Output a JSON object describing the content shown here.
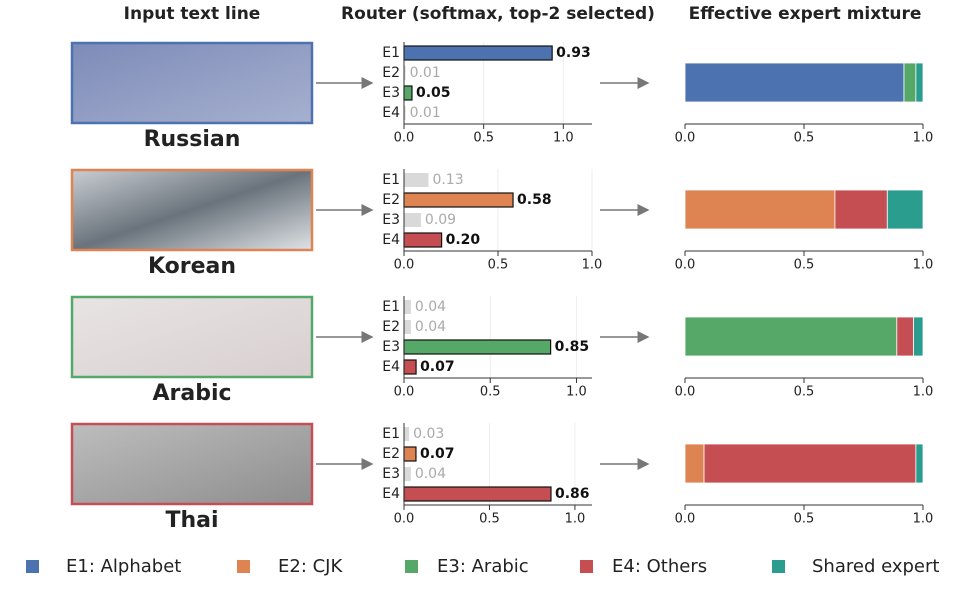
{
  "headers": [
    "Input text line",
    "Router  (softmax, top-2 selected)",
    "Effective expert mixture"
  ],
  "inputs": [
    {
      "label": "Russian",
      "color": "#4c72b0"
    },
    {
      "label": "Korean",
      "color": "#dd8452"
    },
    {
      "label": "Arabic",
      "color": "#55a868"
    },
    {
      "label": "Thai",
      "color": "#c44e52"
    }
  ],
  "legend": [
    {
      "name": "E1: Alphabet",
      "color": "#4c72b0"
    },
    {
      "name": "E2: CJK",
      "color": "#dd8452"
    },
    {
      "name": "E3: Arabic",
      "color": "#55a868"
    },
    {
      "name": "E4: Others",
      "color": "#c44e52"
    },
    {
      "name": "Shared expert",
      "color": "#2a9d8f"
    }
  ],
  "chart_data": [
    {
      "type": "router",
      "categories": [
        "E1",
        "E2",
        "E3",
        "E4"
      ],
      "values": [
        0.93,
        0.01,
        0.05,
        0.01
      ],
      "value_labels": [
        "0.93",
        "0.01",
        "0.05",
        "0.01"
      ],
      "selected": [
        true,
        false,
        true,
        false
      ],
      "colors": [
        "#4c72b0",
        "#dd8452",
        "#55a868",
        "#c44e52"
      ],
      "unselected_color": "#d9d9d9",
      "xlim": [
        0,
        1.18
      ],
      "xticks": [
        {
          "value": 0,
          "label": "0.0"
        },
        0.5,
        {
          "value": 1,
          "label": "1.0"
        }
      ],
      "grid": true
    },
    {
      "type": "mixture",
      "values": [
        0.92,
        0,
        0.05,
        0,
        0.03
      ],
      "xlim": [
        0,
        1
      ],
      "xticks": [
        {
          "value": 0,
          "label": "0.0"
        },
        0.5,
        {
          "value": 1,
          "label": "1.0"
        }
      ]
    },
    {
      "type": "router",
      "categories": [
        "E1",
        "E2",
        "E3",
        "E4"
      ],
      "values": [
        0.13,
        0.58,
        0.09,
        0.2
      ],
      "value_labels": [
        "0.13",
        "0.58",
        "0.09",
        "0.20"
      ],
      "selected": [
        false,
        true,
        false,
        true
      ],
      "colors": [
        "#4c72b0",
        "#dd8452",
        "#55a868",
        "#c44e52"
      ],
      "unselected_color": "#d9d9d9",
      "xlim": [
        0,
        1
      ],
      "xticks": [
        {
          "value": 0,
          "label": "0.0"
        },
        0.5,
        {
          "value": 1,
          "label": "1.0"
        }
      ],
      "grid": true
    },
    {
      "type": "mixture",
      "values": [
        0,
        0.63,
        0,
        0.22,
        0.15
      ],
      "xlim": [
        0,
        1
      ],
      "xticks": [
        {
          "value": 0,
          "label": "0.0"
        },
        0.5,
        {
          "value": 1,
          "label": "1.0"
        }
      ]
    },
    {
      "type": "router",
      "categories": [
        "E1",
        "E2",
        "E3",
        "E4"
      ],
      "values": [
        0.04,
        0.04,
        0.85,
        0.07
      ],
      "value_labels": [
        "0.04",
        "0.04",
        "0.85",
        "0.07"
      ],
      "selected": [
        false,
        false,
        true,
        true
      ],
      "colors": [
        "#4c72b0",
        "#dd8452",
        "#55a868",
        "#c44e52"
      ],
      "unselected_color": "#d9d9d9",
      "xlim": [
        0,
        1.09
      ],
      "xticks": [
        {
          "value": 0,
          "label": "0.0"
        },
        0.5,
        {
          "value": 1,
          "label": "1.0"
        }
      ],
      "grid": true
    },
    {
      "type": "mixture",
      "values": [
        0,
        0,
        0.89,
        0.07,
        0.04
      ],
      "xlim": [
        0,
        1
      ],
      "xticks": [
        {
          "value": 0,
          "label": "0.0"
        },
        0.5,
        {
          "value": 1,
          "label": "1.0"
        }
      ]
    },
    {
      "type": "router",
      "categories": [
        "E1",
        "E2",
        "E3",
        "E4"
      ],
      "values": [
        0.03,
        0.07,
        0.04,
        0.86
      ],
      "value_labels": [
        "0.03",
        "0.07",
        "0.04",
        "0.86"
      ],
      "selected": [
        false,
        true,
        false,
        true
      ],
      "colors": [
        "#4c72b0",
        "#dd8452",
        "#55a868",
        "#c44e52"
      ],
      "unselected_color": "#d9d9d9",
      "xlim": [
        0,
        1.1
      ],
      "xticks": [
        {
          "value": 0,
          "label": "0.0"
        },
        0.5,
        {
          "value": 1,
          "label": "1.0"
        }
      ],
      "grid": true
    },
    {
      "type": "mixture",
      "values": [
        0,
        0.08,
        0,
        0.89,
        0.03
      ],
      "xlim": [
        0,
        1
      ],
      "xticks": [
        {
          "value": 0,
          "label": "0.0"
        },
        0.5,
        {
          "value": 1,
          "label": "1.0"
        }
      ]
    }
  ]
}
